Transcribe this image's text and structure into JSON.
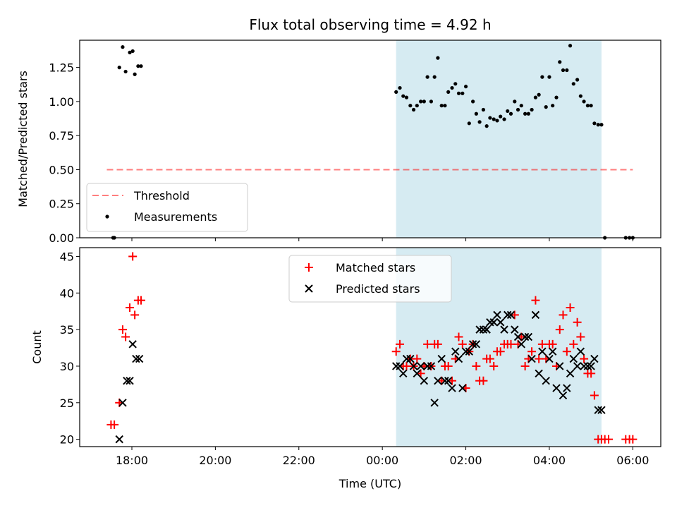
{
  "colors": {
    "background": "#ffffff",
    "shade": "#add8e6",
    "threshold": "#ff0000",
    "measurements": "#000000",
    "matched": "#ff0000",
    "predicted": "#000000"
  },
  "chart_data": [
    {
      "type": "scatter",
      "title": "Flux total observing time = 4.92 h",
      "xlabel": "",
      "ylabel": "Matched/Predicted stars",
      "x_unit": "hours since 00:00 UTC of observing night start",
      "xlim": [
        -7.25,
        6.67
      ],
      "ylim": [
        0.0,
        1.45
      ],
      "ytick_values": [
        0.0,
        0.25,
        0.5,
        0.75,
        1.0,
        1.25
      ],
      "ytick_labels": [
        "0.00",
        "0.25",
        "0.50",
        "0.75",
        "1.00",
        "1.25"
      ],
      "shaded_interval": [
        0.33,
        5.25
      ],
      "threshold": {
        "label": "Threshold",
        "y": 0.5,
        "x": [
          -6.6,
          6.0
        ]
      },
      "legend": [
        "Threshold",
        "Measurements"
      ],
      "legend_position": "lower-left",
      "series": [
        {
          "name": "Measurements",
          "x": [
            -6.45,
            -6.42,
            -6.3,
            -6.22,
            -6.15,
            -6.05,
            -5.98,
            -5.93,
            -5.85,
            -5.78,
            0.33,
            0.42,
            0.5,
            0.58,
            0.67,
            0.75,
            0.83,
            0.92,
            1.0,
            1.08,
            1.17,
            1.25,
            1.33,
            1.42,
            1.5,
            1.58,
            1.67,
            1.75,
            1.83,
            1.92,
            2.0,
            2.08,
            2.17,
            2.25,
            2.33,
            2.42,
            2.5,
            2.58,
            2.67,
            2.75,
            2.83,
            2.92,
            3.0,
            3.08,
            3.17,
            3.25,
            3.33,
            3.42,
            3.5,
            3.58,
            3.67,
            3.75,
            3.83,
            3.92,
            4.0,
            4.08,
            4.17,
            4.25,
            4.33,
            4.42,
            4.5,
            4.58,
            4.67,
            4.75,
            4.83,
            4.92,
            5.0,
            5.08,
            5.17,
            5.25,
            5.33,
            5.83,
            5.92,
            6.0
          ],
          "y": [
            0.0,
            0.0,
            1.25,
            1.4,
            1.22,
            1.36,
            1.37,
            1.2,
            1.26,
            1.26,
            1.07,
            1.1,
            1.04,
            1.03,
            0.97,
            0.94,
            0.97,
            1.0,
            1.0,
            1.18,
            1.0,
            1.18,
            1.32,
            0.97,
            0.97,
            1.07,
            1.1,
            1.13,
            1.06,
            1.06,
            1.11,
            0.84,
            1.0,
            0.91,
            0.85,
            0.94,
            0.82,
            0.88,
            0.87,
            0.86,
            0.89,
            0.87,
            0.93,
            0.91,
            1.0,
            0.94,
            0.97,
            0.91,
            0.91,
            0.94,
            1.03,
            1.05,
            1.18,
            0.96,
            1.18,
            0.97,
            1.03,
            1.29,
            1.23,
            1.23,
            1.41,
            1.13,
            1.16,
            1.04,
            1.0,
            0.97,
            0.97,
            0.84,
            0.83,
            0.83,
            0.0,
            0.0,
            0.0,
            0.0
          ]
        }
      ]
    },
    {
      "type": "scatter",
      "title": "",
      "xlabel": "Time (UTC)",
      "ylabel": "Count",
      "x_unit": "hours since 00:00 UTC of observing night start",
      "xlim": [
        -7.25,
        6.67
      ],
      "ylim": [
        19.0,
        46.2
      ],
      "ytick_values": [
        20,
        25,
        30,
        35,
        40,
        45
      ],
      "ytick_labels": [
        "20",
        "25",
        "30",
        "35",
        "40",
        "45"
      ],
      "xtick_values": [
        -6.0,
        -4.0,
        -2.0,
        0.0,
        2.0,
        4.0,
        6.0
      ],
      "xtick_labels": [
        "18:00",
        "20:00",
        "22:00",
        "00:00",
        "02:00",
        "04:00",
        "06:00"
      ],
      "shaded_interval": [
        0.33,
        5.25
      ],
      "legend": [
        "Matched stars",
        "Predicted stars"
      ],
      "legend_position": "upper-center",
      "series": [
        {
          "name": "Matched stars",
          "marker": "plus",
          "x": [
            -6.5,
            -6.42,
            -6.3,
            -6.22,
            -6.15,
            -6.05,
            -5.98,
            -5.93,
            -5.85,
            -5.78,
            0.33,
            0.42,
            0.5,
            0.58,
            0.67,
            0.75,
            0.83,
            0.92,
            1.0,
            1.08,
            1.17,
            1.25,
            1.33,
            1.42,
            1.5,
            1.58,
            1.67,
            1.75,
            1.83,
            1.92,
            2.0,
            2.08,
            2.17,
            2.25,
            2.33,
            2.42,
            2.5,
            2.58,
            2.67,
            2.75,
            2.83,
            2.92,
            3.0,
            3.08,
            3.17,
            3.25,
            3.33,
            3.42,
            3.5,
            3.58,
            3.67,
            3.75,
            3.83,
            3.92,
            4.0,
            4.08,
            4.17,
            4.25,
            4.33,
            4.42,
            4.5,
            4.58,
            4.67,
            4.75,
            4.83,
            4.92,
            5.0,
            5.08,
            5.17,
            5.25,
            5.33,
            5.42,
            5.83,
            5.92,
            6.0
          ],
          "y": [
            22,
            22,
            25,
            35,
            34,
            38,
            45,
            37,
            39,
            39,
            32,
            33,
            30,
            30,
            31,
            30,
            31,
            29,
            30,
            33,
            30,
            33,
            33,
            28,
            30,
            30,
            28,
            31,
            34,
            33,
            27,
            32,
            33,
            30,
            28,
            28,
            31,
            31,
            30,
            32,
            32,
            33,
            33,
            33,
            37,
            33,
            34,
            30,
            31,
            32,
            39,
            31,
            33,
            31,
            33,
            33,
            30,
            35,
            37,
            32,
            38,
            33,
            36,
            34,
            31,
            29,
            29,
            26,
            20,
            20,
            20,
            20,
            20,
            20,
            20
          ]
        },
        {
          "name": "Predicted stars",
          "marker": "x",
          "x": [
            -6.3,
            -6.22,
            -6.12,
            -6.05,
            -5.98,
            -5.9,
            -5.82,
            0.33,
            0.42,
            0.5,
            0.58,
            0.67,
            0.75,
            0.83,
            0.92,
            1.0,
            1.08,
            1.17,
            1.25,
            1.33,
            1.42,
            1.5,
            1.58,
            1.67,
            1.75,
            1.83,
            1.92,
            2.0,
            2.08,
            2.17,
            2.25,
            2.33,
            2.42,
            2.5,
            2.58,
            2.67,
            2.75,
            2.83,
            2.92,
            3.0,
            3.08,
            3.17,
            3.25,
            3.33,
            3.42,
            3.5,
            3.58,
            3.67,
            3.75,
            3.83,
            3.92,
            4.0,
            4.08,
            4.17,
            4.25,
            4.33,
            4.42,
            4.5,
            4.58,
            4.67,
            4.75,
            4.83,
            4.92,
            5.0,
            5.08,
            5.17,
            5.25
          ],
          "y": [
            20,
            25,
            28,
            28,
            33,
            31,
            31,
            30,
            30,
            29,
            31,
            31,
            30,
            29,
            30,
            28,
            30,
            30,
            25,
            28,
            31,
            28,
            28,
            27,
            32,
            31,
            27,
            32,
            32,
            33,
            33,
            35,
            35,
            35,
            36,
            36,
            37,
            36,
            35,
            37,
            37,
            35,
            34,
            33,
            34,
            34,
            31,
            37,
            29,
            32,
            28,
            31,
            32,
            27,
            30,
            26,
            27,
            29,
            31,
            30,
            32,
            30,
            30,
            30,
            31,
            24,
            24
          ]
        }
      ]
    }
  ]
}
